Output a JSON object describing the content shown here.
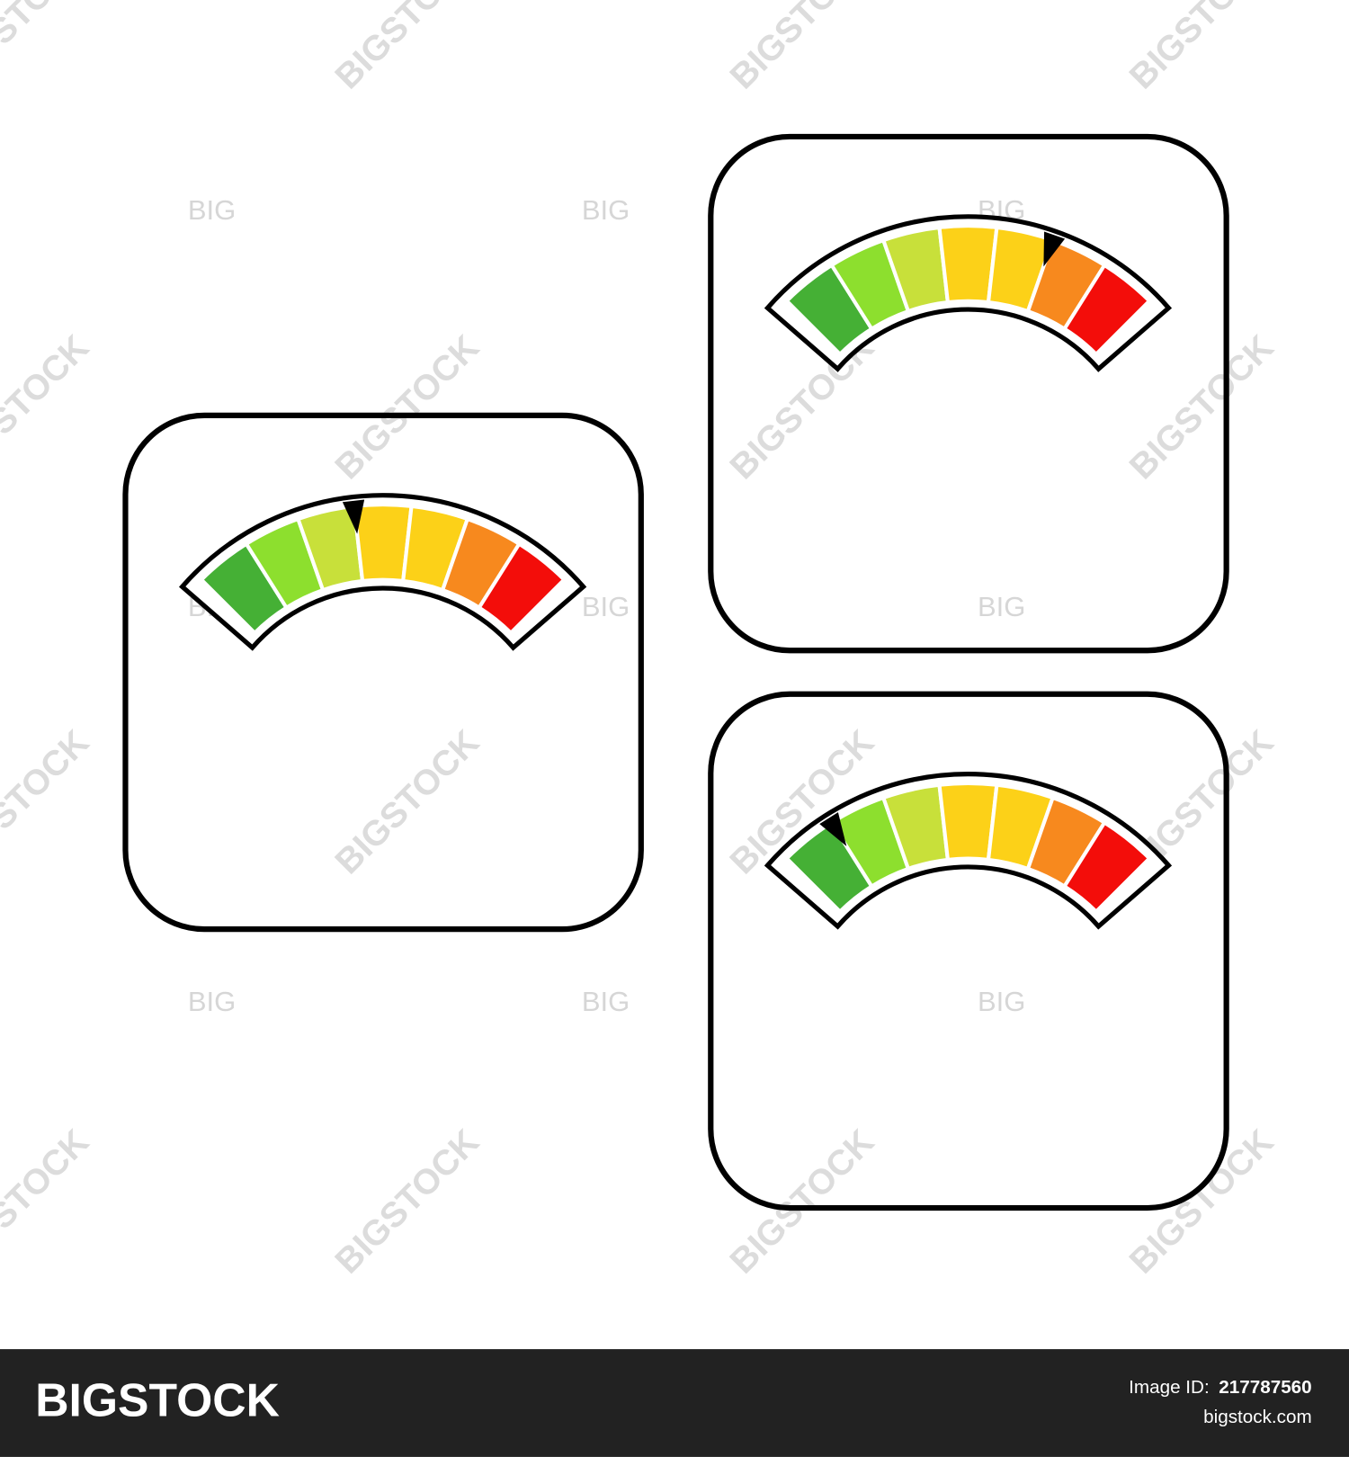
{
  "watermark": {
    "short": "BIG",
    "long": "BIGSTOCK"
  },
  "segment_colors": [
    "#45b035",
    "#8ddf2e",
    "#c8e03a",
    "#fcd118",
    "#f7891e",
    "#f30d0a"
  ],
  "footer": {
    "brand": "BIGSTOCK",
    "id_label": "Image ID:",
    "id": "217787560",
    "site": "bigstock.com"
  }
}
